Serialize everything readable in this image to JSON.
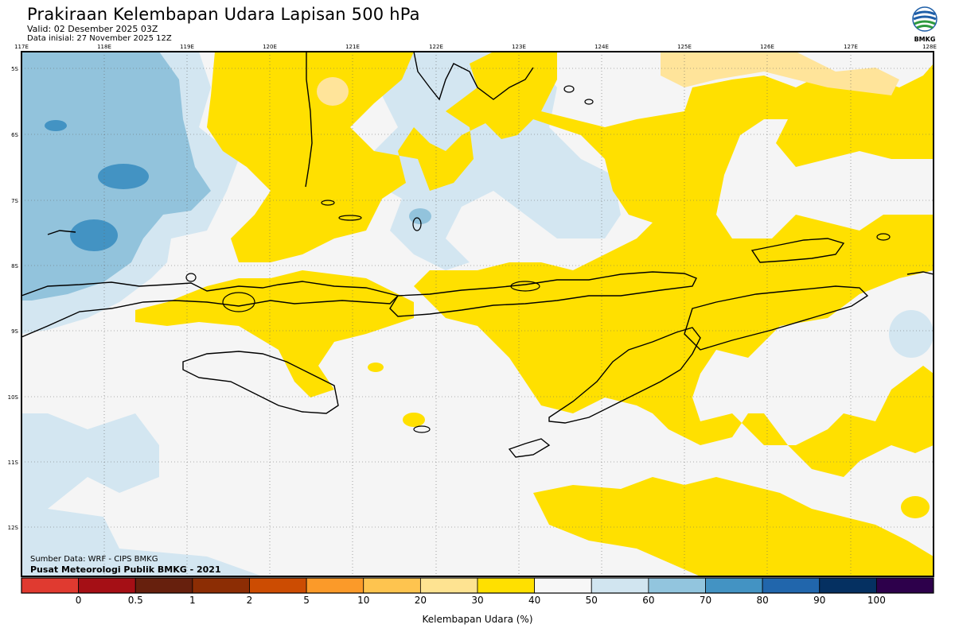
{
  "header": {
    "title": "Prakiraan Kelembapan Udara Lapisan 500 hPa",
    "valid": "Valid: 02 Desember 2025 03Z",
    "initial": "Data inisial: 27 November 2025 12Z",
    "logo_text": "BMKG"
  },
  "map": {
    "lon_labels": [
      "117E",
      "118E",
      "119E",
      "120E",
      "121E",
      "122E",
      "123E",
      "124E",
      "125E",
      "126E",
      "127E",
      "128E"
    ],
    "lat_labels": [
      "5S",
      "6S",
      "7S",
      "8S",
      "9S",
      "10S",
      "11S",
      "12S"
    ],
    "colors": {
      "land_outline": "#000000",
      "humidity_30_40": "#ffe000",
      "humidity_20_30": "#ffe49a",
      "humidity_40_50": "#f5f5f5",
      "humidity_50_60": "#d3e6f1",
      "humidity_60_70": "#92c3dc",
      "humidity_70_80": "#4393c3"
    }
  },
  "credits": {
    "source": "Sumber Data: WRF - CIPS BMKG",
    "org": "Pusat Meteorologi Publik BMKG - 2021"
  },
  "colorbar": {
    "title": "Kelembapan Udara (%)",
    "labels": [
      "0",
      "0.5",
      "1",
      "2",
      "5",
      "10",
      "20",
      "30",
      "40",
      "50",
      "60",
      "70",
      "80",
      "90",
      "100"
    ],
    "colors": [
      "#e03a30",
      "#a50f15",
      "#67200d",
      "#8c2d04",
      "#cc4c02",
      "#fb9a29",
      "#fec44f",
      "#fee391",
      "#ffe000",
      "#f7f7f7",
      "#d1e5f0",
      "#92c5de",
      "#4393c3",
      "#2166ac",
      "#053061",
      "#2d004b"
    ]
  }
}
